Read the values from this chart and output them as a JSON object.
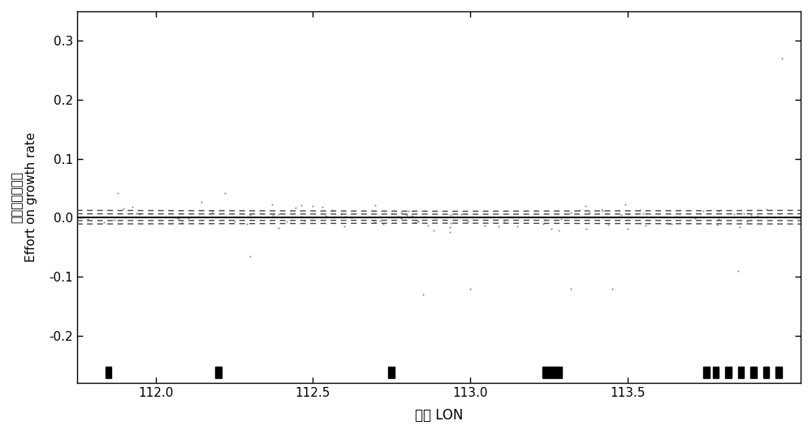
{
  "xlabel": "经度 LON",
  "ylabel_chinese": "对生长率的影响",
  "ylabel_english": "Effort on growth rate",
  "xlim": [
    111.75,
    114.05
  ],
  "ylim": [
    -0.28,
    0.35
  ],
  "yticks": [
    -0.2,
    -0.1,
    0.0,
    0.1,
    0.2,
    0.3
  ],
  "xticks": [
    112.0,
    112.5,
    113.0,
    113.5
  ],
  "bg_color": "#ffffff",
  "line_color": "#000000",
  "dashed_color": "#444444",
  "scatter_color": "#888888",
  "rug_color": "#000000",
  "figsize": [
    10.0,
    5.35
  ],
  "dpi": 100
}
